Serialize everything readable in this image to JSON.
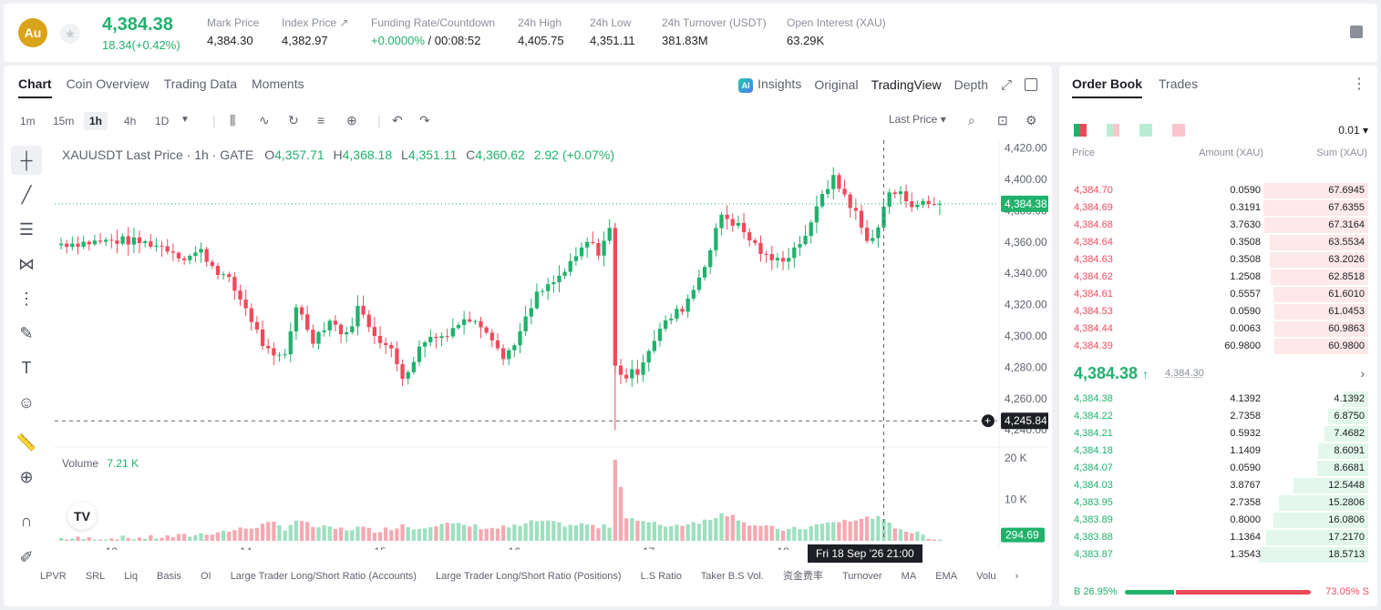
{
  "header": {
    "logo_text": "Au",
    "last_price": "4,384.38",
    "change": "18.34(+0.42%)",
    "stats": [
      {
        "label": "Mark Price",
        "value": "4,384.30"
      },
      {
        "label": "Index Price ↗",
        "value": "4,382.97"
      },
      {
        "label": "Funding Rate/Countdown",
        "value_green": "+0.0000%",
        "value": " / 00:08:52"
      },
      {
        "label": "24h High",
        "value": "4,405.75"
      },
      {
        "label": "24h Low",
        "value": "4,351.11"
      },
      {
        "label": "24h Turnover (USDT)",
        "value": "381.83M"
      },
      {
        "label": "Open Interest (XAU)",
        "value": "63.29K"
      }
    ]
  },
  "chart_panel": {
    "tabs": [
      "Chart",
      "Coin Overview",
      "Trading Data",
      "Moments"
    ],
    "right_tabs": {
      "insights": "Insights",
      "original": "Original",
      "tradingview": "TradingView",
      "depth": "Depth"
    },
    "timeframes": [
      "1m",
      "15m",
      "1h",
      "4h",
      "1D"
    ],
    "selected_timeframe": "1h",
    "price_type": "Last Price",
    "ohlc": {
      "title": "XAUUSDT Last Price · 1h · GATE",
      "o": "4,357.71",
      "h": "4,368.18",
      "l": "4,351.11",
      "c": "4,360.62",
      "chg": "2.92 (+0.07%)"
    },
    "volume_label": "Volume",
    "volume_value": "7.21 K",
    "crosshair_date": "Fri 18 Sep '26   21:00",
    "bottom_indicators": [
      "LPVR",
      "SRL",
      "Liq",
      "Basis",
      "OI",
      "Large Trader Long/Short Ratio (Accounts)",
      "Large Trader Long/Short Ratio (Positions)",
      "L.S Ratio",
      "Taker B.S Vol.",
      "资金费率",
      "Turnover",
      "MA",
      "EMA",
      "Volu"
    ]
  },
  "chart_data": {
    "type": "candlestick",
    "title": "XAUUSDT Last Price · 1h · GATE",
    "price_axis_ticks": [
      4420,
      4400,
      4380,
      4360,
      4340,
      4320,
      4300,
      4280,
      4260,
      4240
    ],
    "price_axis_labels": [
      "4,420.00",
      "4,400.00",
      "4,380.00",
      "4,360.00",
      "4,340.00",
      "4,320.00",
      "4,300.00",
      "4,280.00",
      "4,260.00",
      "4,240.00"
    ],
    "ylim": [
      4232,
      4425
    ],
    "x_ticks": [
      "13",
      "14",
      "15",
      "16",
      "17",
      "18"
    ],
    "last_price_label": "4,384.38",
    "last_price": 4384.38,
    "crosshair_price_label": "4,245.84",
    "crosshair_price": 4245.84,
    "volume_ticks": [
      "20 K",
      "10 K"
    ],
    "volume_ylim": [
      0,
      22
    ],
    "volume_last_label": "294.69",
    "anchors": [
      [
        0,
        4359,
        0.6
      ],
      [
        6,
        4360,
        0.5
      ],
      [
        11,
        4361,
        0.7
      ],
      [
        16,
        4359,
        0.8
      ],
      [
        19,
        4356,
        1.0
      ],
      [
        22,
        4350,
        1.2
      ],
      [
        25,
        4354,
        1.6
      ],
      [
        27,
        4345,
        2.0
      ],
      [
        30,
        4335,
        2.4
      ],
      [
        33,
        4318,
        3.0
      ],
      [
        36,
        4295,
        3.8
      ],
      [
        38,
        4285,
        4.2
      ],
      [
        40,
        4288,
        3.0
      ],
      [
        42,
        4320,
        5.0
      ],
      [
        45,
        4298,
        3.5
      ],
      [
        48,
        4310,
        3.0
      ],
      [
        51,
        4300,
        2.8
      ],
      [
        53,
        4318,
        3.2
      ],
      [
        56,
        4302,
        2.5
      ],
      [
        59,
        4290,
        3.0
      ],
      [
        61,
        4274,
        4.0
      ],
      [
        63,
        4285,
        3.0
      ],
      [
        65,
        4298,
        3.6
      ],
      [
        68,
        4300,
        4.2
      ],
      [
        71,
        4308,
        3.8
      ],
      [
        74,
        4312,
        3.5
      ],
      [
        77,
        4300,
        3.0
      ],
      [
        79,
        4285,
        3.2
      ],
      [
        82,
        4302,
        3.6
      ],
      [
        85,
        4326,
        4.8
      ],
      [
        88,
        4334,
        4.2
      ],
      [
        91,
        4345,
        3.8
      ],
      [
        94,
        4360,
        4.0
      ],
      [
        96,
        4354,
        3.2
      ],
      [
        98,
        4368,
        3.6
      ],
      [
        99,
        4280,
        20.0
      ],
      [
        101,
        4274,
        6.0
      ],
      [
        103,
        4278,
        5.0
      ],
      [
        105,
        4292,
        4.2
      ],
      [
        107,
        4304,
        4.0
      ],
      [
        109,
        4312,
        3.6
      ],
      [
        111,
        4318,
        4.0
      ],
      [
        113,
        4330,
        4.5
      ],
      [
        116,
        4355,
        5.0
      ],
      [
        118,
        4378,
        7.0
      ],
      [
        121,
        4370,
        5.5
      ],
      [
        123,
        4362,
        4.0
      ],
      [
        126,
        4350,
        3.2
      ],
      [
        128,
        4348,
        3.0
      ],
      [
        130,
        4352,
        2.6
      ],
      [
        132,
        4360,
        3.0
      ],
      [
        134,
        4370,
        3.4
      ],
      [
        136,
        4392,
        4.0
      ],
      [
        138,
        4400,
        4.4
      ],
      [
        140,
        4390,
        5.0
      ],
      [
        142,
        4378,
        4.6
      ],
      [
        144,
        4360,
        6.0
      ],
      [
        146,
        4370,
        5.5
      ],
      [
        148,
        4392,
        4.0
      ],
      [
        150,
        4390,
        3.0
      ],
      [
        152,
        4385,
        2.0
      ],
      [
        155,
        4384,
        1.0
      ],
      [
        157,
        4384.38,
        0.3
      ]
    ],
    "timespan": "2026-09-12 18:00 – 2026-09-19 04:00",
    "interval": "1h"
  },
  "order_book": {
    "tabs": [
      "Order Book",
      "Trades"
    ],
    "precision": "0.01",
    "headers": {
      "price": "Price",
      "amount": "Amount (XAU)",
      "sum": "Sum (XAU)"
    },
    "asks": [
      {
        "price": "4,384.70",
        "amount": "0.0590",
        "sum": "67.6945",
        "depth": 0.96
      },
      {
        "price": "4,384.69",
        "amount": "0.3191",
        "sum": "67.6355",
        "depth": 0.96
      },
      {
        "price": "4,384.68",
        "amount": "3.7630",
        "sum": "67.3164",
        "depth": 0.95
      },
      {
        "price": "4,384.64",
        "amount": "0.3508",
        "sum": "63.5534",
        "depth": 0.9
      },
      {
        "price": "4,384.63",
        "amount": "0.3508",
        "sum": "63.2026",
        "depth": 0.9
      },
      {
        "price": "4,384.62",
        "amount": "1.2508",
        "sum": "62.8518",
        "depth": 0.89
      },
      {
        "price": "4,384.61",
        "amount": "0.5557",
        "sum": "61.6010",
        "depth": 0.87
      },
      {
        "price": "4,384.53",
        "amount": "0.0590",
        "sum": "61.0453",
        "depth": 0.86
      },
      {
        "price": "4,384.44",
        "amount": "0.0063",
        "sum": "60.9863",
        "depth": 0.86
      },
      {
        "price": "4,384.39",
        "amount": "60.9800",
        "sum": "60.9800",
        "depth": 0.86
      }
    ],
    "mid": {
      "price": "4,384.38",
      "mark": "4,384.30"
    },
    "bids": [
      {
        "price": "4,384.38",
        "amount": "4.1392",
        "sum": "4.1392",
        "depth": 0.23
      },
      {
        "price": "4,384.22",
        "amount": "2.7358",
        "sum": "6.8750",
        "depth": 0.37
      },
      {
        "price": "4,384.21",
        "amount": "0.5932",
        "sum": "7.4682",
        "depth": 0.4
      },
      {
        "price": "4,384.18",
        "amount": "1.1409",
        "sum": "8.6091",
        "depth": 0.46
      },
      {
        "price": "4,384.07",
        "amount": "0.0590",
        "sum": "8.6681",
        "depth": 0.47
      },
      {
        "price": "4,384.03",
        "amount": "3.8767",
        "sum": "12.5448",
        "depth": 0.68
      },
      {
        "price": "4,383.95",
        "amount": "2.7358",
        "sum": "15.2806",
        "depth": 0.82
      },
      {
        "price": "4,383.89",
        "amount": "0.8000",
        "sum": "16.0806",
        "depth": 0.87
      },
      {
        "price": "4,383.88",
        "amount": "1.1364",
        "sum": "17.2170",
        "depth": 0.93
      },
      {
        "price": "4,383.87",
        "amount": "1.3543",
        "sum": "18.5713",
        "depth": 1.0
      }
    ],
    "ratio": {
      "buy_label": "B 26.95%",
      "sell_label": "73.05% S",
      "buy": 0.2695
    },
    "colors": {
      "green": "#20b26c",
      "red": "#ef4a5c"
    }
  }
}
